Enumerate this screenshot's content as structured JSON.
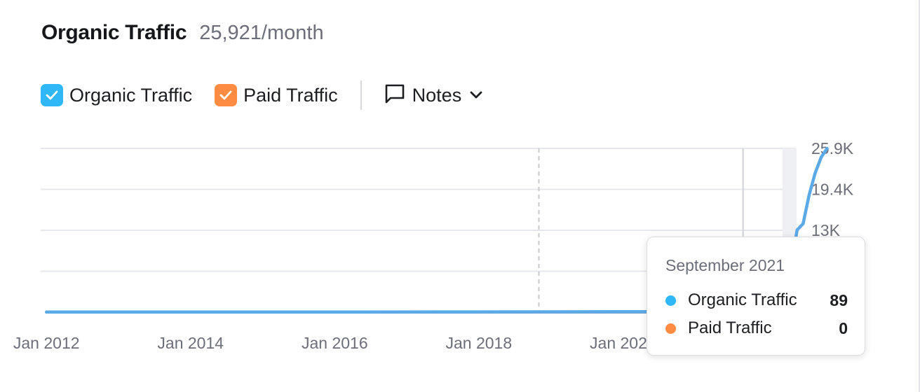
{
  "header": {
    "title": "Organic Traffic",
    "subtitle": "25,921/month"
  },
  "legend": {
    "organic": {
      "label": "Organic Traffic",
      "color": "#2fb7f8"
    },
    "paid": {
      "label": "Paid Traffic",
      "color": "#ff8c42"
    },
    "notes_label": "Notes"
  },
  "tooltip": {
    "date": "September 2021",
    "rows": [
      {
        "name": "Organic Traffic",
        "value": "89",
        "color": "#2fb7f8"
      },
      {
        "name": "Paid Traffic",
        "value": "0",
        "color": "#ff8c42"
      }
    ]
  },
  "chart_data": {
    "type": "line",
    "x_tick_labels": [
      "Jan 2012",
      "Jan 2014",
      "Jan 2016",
      "Jan 2018",
      "Jan 2020",
      "J"
    ],
    "y_tick_labels": [
      "25.9K",
      "19.4K",
      "13K"
    ],
    "ylim": [
      0,
      25921
    ],
    "grid": true,
    "series": [
      {
        "name": "Organic Traffic",
        "color": "#5ba9e6",
        "points": [
          [
            "2012-01",
            20
          ],
          [
            "2014-01",
            20
          ],
          [
            "2016-01",
            20
          ],
          [
            "2018-01",
            40
          ],
          [
            "2019-01",
            60
          ],
          [
            "2020-01",
            80
          ],
          [
            "2021-01",
            90
          ],
          [
            "2021-09",
            89
          ],
          [
            "2022-03",
            500
          ],
          [
            "2022-04",
            2000
          ],
          [
            "2022-05",
            7000
          ],
          [
            "2022-06",
            13000
          ],
          [
            "2022-07",
            14000
          ],
          [
            "2022-08",
            18500
          ],
          [
            "2022-09",
            22000
          ],
          [
            "2022-10",
            24500
          ],
          [
            "2022-11",
            25921
          ]
        ]
      },
      {
        "name": "Paid Traffic",
        "color": "#8fa3c0",
        "points": [
          [
            "2012-01",
            0
          ],
          [
            "2021-09",
            0
          ],
          [
            "2022-11",
            0
          ]
        ]
      }
    ],
    "markers": [
      {
        "date": "2018-11",
        "style": "dashed"
      },
      {
        "date": "2021-09",
        "style": "hover"
      }
    ]
  }
}
